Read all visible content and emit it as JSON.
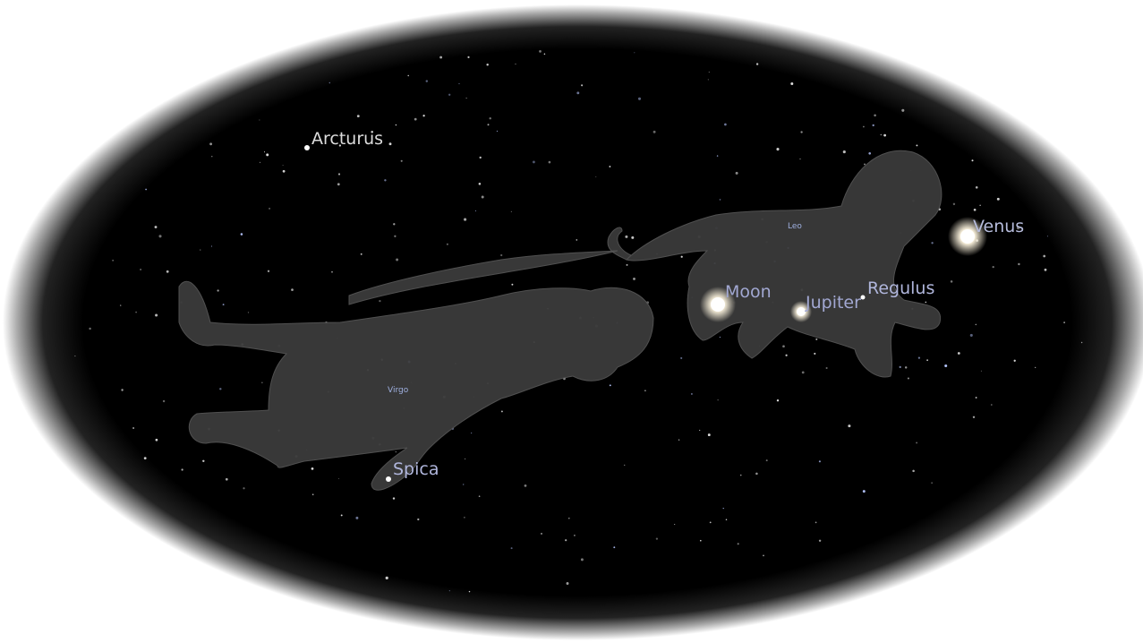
{
  "sky_view": {
    "constellations": [
      {
        "label": "Leo"
      },
      {
        "label": "Virgo"
      }
    ],
    "objects": [
      {
        "label": "Arcturus"
      },
      {
        "label": "Venus"
      },
      {
        "label": "Moon"
      },
      {
        "label": "Jupiter"
      },
      {
        "label": "Regulus"
      },
      {
        "label": "Spica"
      }
    ]
  }
}
